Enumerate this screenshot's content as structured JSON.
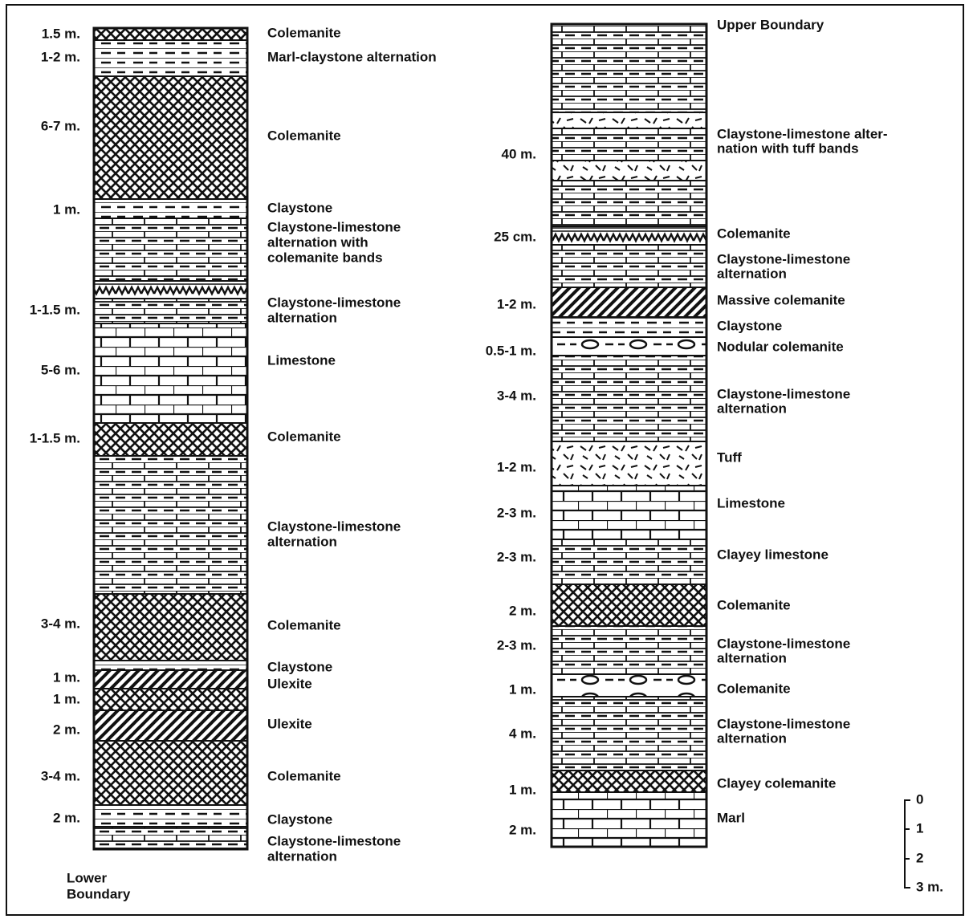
{
  "left": {
    "thickness": [
      "1.5 m.",
      "1-2 m.",
      "6-7 m.",
      "1 m.",
      "1-1.5 m.",
      "5-6 m.",
      "1-1.5 m.",
      "3-4 m.",
      "1 m.",
      "1 m.",
      "2 m.",
      "3-4 m.",
      "2 m."
    ],
    "units": [
      [
        "Colemanite"
      ],
      [
        "Marl-claystone alternation"
      ],
      [
        "Colemanite"
      ],
      [
        "Claystone"
      ],
      [
        "Claystone-limestone",
        "alternation with",
        "colemanite bands"
      ],
      [
        "Claystone-limestone",
        "alternation"
      ],
      [
        "Limestone"
      ],
      [
        "Colemanite"
      ],
      [
        "Claystone-limestone",
        "alternation"
      ],
      [
        "Colemanite"
      ],
      [
        "Claystone"
      ],
      [
        "Ulexite"
      ],
      [
        "Ulexite"
      ],
      [
        "Colemanite"
      ],
      [
        "Claystone"
      ],
      [
        "Claystone-limestone",
        "alternation"
      ]
    ],
    "boundary": [
      "Lower",
      "Boundary"
    ]
  },
  "right": {
    "thickness": [
      "40 m.",
      "25 cm.",
      "1-2 m.",
      "0.5-1 m.",
      "3-4 m.",
      "1-2 m.",
      "2-3 m.",
      "2-3 m.",
      "2 m.",
      "2-3 m.",
      "1 m.",
      "4 m.",
      "1 m.",
      "2 m."
    ],
    "units": [
      [
        "Upper Boundary"
      ],
      [
        "Claystone-limestone alter-",
        "nation with tuff bands"
      ],
      [
        "Colemanite"
      ],
      [
        "Claystone-limestone",
        "alternation"
      ],
      [
        "Massive colemanite"
      ],
      [
        "Claystone"
      ],
      [
        "Nodular colemanite"
      ],
      [
        "Claystone-limestone",
        "alternation"
      ],
      [
        "Tuff"
      ],
      [
        "Limestone"
      ],
      [
        "Clayey limestone"
      ],
      [
        "Colemanite"
      ],
      [
        "Claystone-limestone",
        "alternation"
      ],
      [
        "Colemanite"
      ],
      [
        "Claystone-limestone",
        "alternation"
      ],
      [
        "Clayey colemanite"
      ],
      [
        "Marl"
      ]
    ]
  },
  "scale": [
    "0",
    "1",
    "2",
    "3 m."
  ]
}
